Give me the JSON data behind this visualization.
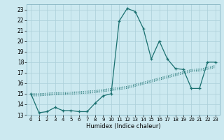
{
  "xlabel": "Humidex (Indice chaleur)",
  "bg_color": "#cce9f0",
  "grid_color": "#aacfd8",
  "line_color": "#1a7070",
  "xlim": [
    -0.5,
    23.5
  ],
  "ylim": [
    13,
    23.5
  ],
  "yticks": [
    13,
    14,
    15,
    16,
    17,
    18,
    19,
    20,
    21,
    22,
    23
  ],
  "xticks": [
    0,
    1,
    2,
    3,
    4,
    5,
    6,
    7,
    8,
    9,
    10,
    11,
    12,
    13,
    14,
    15,
    16,
    17,
    18,
    19,
    20,
    21,
    22,
    23
  ],
  "main_x": [
    0,
    1,
    2,
    3,
    4,
    5,
    6,
    7,
    8,
    9,
    10,
    11,
    12,
    13,
    14,
    15,
    16,
    17,
    18,
    19,
    20,
    21,
    22,
    23
  ],
  "main_y": [
    15,
    13.2,
    13.3,
    13.7,
    13.4,
    13.4,
    13.3,
    13.3,
    14.1,
    14.8,
    15.0,
    21.9,
    23.1,
    22.8,
    21.2,
    18.3,
    20.0,
    18.3,
    17.4,
    17.3,
    15.5,
    15.5,
    18.0,
    18.0
  ],
  "ref1_x": [
    0,
    1,
    2,
    3,
    4,
    5,
    6,
    7,
    8,
    9,
    10,
    11,
    12,
    13,
    14,
    15,
    16,
    17,
    18,
    19,
    20,
    21,
    22,
    23
  ],
  "ref1_y": [
    14.8,
    14.8,
    14.85,
    14.9,
    14.9,
    14.95,
    15.0,
    15.05,
    15.1,
    15.2,
    15.3,
    15.4,
    15.5,
    15.7,
    15.9,
    16.1,
    16.3,
    16.5,
    16.7,
    16.9,
    17.1,
    17.15,
    17.3,
    17.5
  ],
  "ref2_x": [
    0,
    1,
    2,
    3,
    4,
    5,
    6,
    7,
    8,
    9,
    10,
    11,
    12,
    13,
    14,
    15,
    16,
    17,
    18,
    19,
    20,
    21,
    22,
    23
  ],
  "ref2_y": [
    14.9,
    14.9,
    14.95,
    15.0,
    15.0,
    15.05,
    15.1,
    15.15,
    15.2,
    15.3,
    15.4,
    15.5,
    15.6,
    15.8,
    16.0,
    16.2,
    16.4,
    16.6,
    16.8,
    17.0,
    17.2,
    17.25,
    17.4,
    17.6
  ],
  "ref3_x": [
    0,
    1,
    2,
    3,
    4,
    5,
    6,
    7,
    8,
    9,
    10,
    11,
    12,
    13,
    14,
    15,
    16,
    17,
    18,
    19,
    20,
    21,
    22,
    23
  ],
  "ref3_y": [
    15.0,
    15.0,
    15.05,
    15.1,
    15.1,
    15.15,
    15.2,
    15.25,
    15.3,
    15.4,
    15.5,
    15.6,
    15.7,
    15.9,
    16.1,
    16.3,
    16.5,
    16.7,
    16.9,
    17.1,
    17.3,
    17.35,
    17.5,
    17.7
  ]
}
